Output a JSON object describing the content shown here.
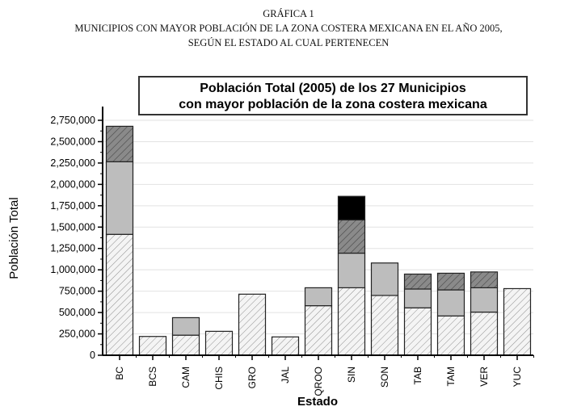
{
  "header": {
    "line1": "GRÁFICA 1",
    "line2": "MUNICIPIOS CON MAYOR POBLACIÓN DE LA ZONA COSTERA MEXICANA EN EL AÑO 2005,",
    "line3": "SEGÚN EL ESTADO AL CUAL PERTENECEN"
  },
  "chart_data": {
    "type": "bar",
    "stacked": true,
    "title": [
      "Población Total (2005) de los 27 Municipios",
      "con mayor población de la zona costera mexicana"
    ],
    "xlabel": "Estado",
    "ylabel": "Población Total",
    "ylim": [
      0,
      2850000
    ],
    "yticks": [
      0,
      250000,
      500000,
      750000,
      1000000,
      1250000,
      1500000,
      1750000,
      2000000,
      2250000,
      2500000,
      2750000
    ],
    "ytick_labels": [
      "0",
      "250,000",
      "500,000",
      "750,000",
      "1,000,000",
      "1,250,000",
      "1,500,000",
      "1,750,000",
      "2,000,000",
      "2,250,000",
      "2,500,000",
      "2,750,000"
    ],
    "grid": true,
    "categories": [
      "BC",
      "BCS",
      "CAM",
      "CHIS",
      "GRO",
      "JAL",
      "QROO",
      "SIN",
      "SON",
      "TAB",
      "TAM",
      "VER",
      "YUC"
    ],
    "segments": [
      [
        1415000,
        850000,
        415000
      ],
      [
        220000
      ],
      [
        235000,
        205000
      ],
      [
        280000
      ],
      [
        715000
      ],
      [
        215000
      ],
      [
        580000,
        210000
      ],
      [
        790000,
        405000,
        390000,
        275000
      ],
      [
        700000,
        380000
      ],
      [
        555000,
        220000,
        175000
      ],
      [
        460000,
        305000,
        195000
      ],
      [
        505000,
        285000,
        185000
      ],
      [
        780000
      ]
    ],
    "segment_fills": [
      "hatch-light",
      "#bdbdbd",
      "hatch-dark",
      "#000000"
    ]
  }
}
